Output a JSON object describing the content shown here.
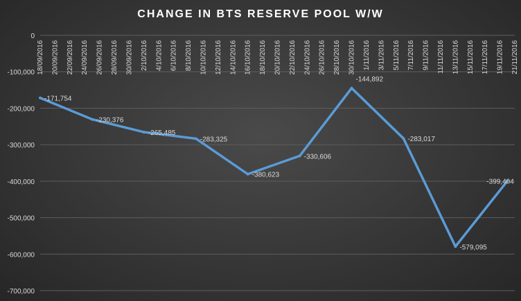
{
  "chart_data": {
    "type": "line",
    "title": "CHANGE  IN BTS  RESERVE  POOL W/W",
    "xlabel": "",
    "ylabel": "",
    "ylim": [
      -700000,
      0
    ],
    "yticks": [
      0,
      -100000,
      -200000,
      -300000,
      -400000,
      -500000,
      -600000,
      -700000
    ],
    "ytick_labels": [
      "0",
      "-100,000",
      "-200,000",
      "-300,000",
      "-400,000",
      "-500,000",
      "-600,000",
      "-700,000"
    ],
    "grid": "horizontal",
    "line_color": "#5b9bd5",
    "categories": [
      "18/09/2016",
      "20/09/2016",
      "22/09/2016",
      "24/09/2016",
      "26/09/2016",
      "28/09/2016",
      "30/09/2016",
      "2/10/2016",
      "4/10/2016",
      "6/10/2016",
      "8/10/2016",
      "10/10/2016",
      "12/10/2016",
      "14/10/2016",
      "16/10/2016",
      "18/10/2016",
      "20/10/2016",
      "22/10/2016",
      "24/10/2016",
      "26/10/2016",
      "28/10/2016",
      "30/10/2016",
      "1/11/2016",
      "3/11/2016",
      "5/11/2016",
      "7/11/2016",
      "9/11/2016",
      "11/11/2016",
      "13/11/2016",
      "15/11/2016",
      "17/11/2016",
      "19/11/2016",
      "21/11/2016"
    ],
    "series": [
      {
        "x": [
          "18/09/2016",
          "25/09/2016",
          "2/10/2016",
          "9/10/2016",
          "16/10/2016",
          "23/10/2016",
          "30/10/2016",
          "6/11/2016",
          "13/11/2016",
          "20/11/2016"
        ],
        "values": [
          -171754,
          -230376,
          -265485,
          -283325,
          -380623,
          -330606,
          -144892,
          -283017,
          -579095,
          -399404
        ],
        "labels": [
          "-171,754",
          "-230,376",
          "-265,485",
          "-283,325",
          "-380,623",
          "-330,606",
          "-144,892",
          "-283,017",
          "-579,095",
          "-399,404"
        ]
      }
    ]
  }
}
